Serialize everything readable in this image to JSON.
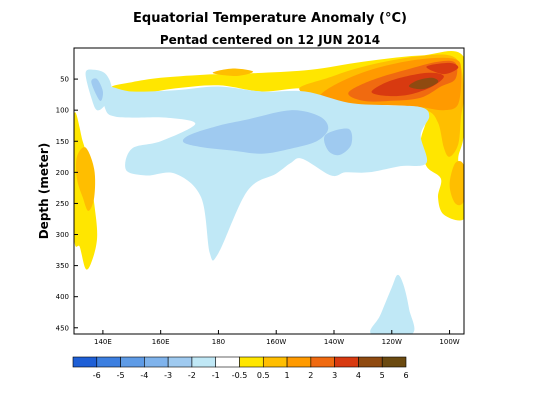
{
  "chart_data": {
    "type": "heatmap",
    "title": "Equatorial Temperature Anomaly (°C)",
    "subtitle": "Pentad centered on 12 JUN 2014",
    "ylabel": "Depth (meter)",
    "xlabel": "",
    "x_domain": [
      130,
      265
    ],
    "ylim": [
      0,
      460
    ],
    "y_inverted": true,
    "x_ticks": [
      {
        "value": 140,
        "label": "140E"
      },
      {
        "value": 160,
        "label": "160E"
      },
      {
        "value": 180,
        "label": "180"
      },
      {
        "value": 200,
        "label": "160W"
      },
      {
        "value": 220,
        "label": "140W"
      },
      {
        "value": 240,
        "label": "120W"
      },
      {
        "value": 260,
        "label": "100W"
      }
    ],
    "y_ticks": [
      {
        "value": 50,
        "label": "50"
      },
      {
        "value": 100,
        "label": "100"
      },
      {
        "value": 150,
        "label": "150"
      },
      {
        "value": 200,
        "label": "200"
      },
      {
        "value": 250,
        "label": "250"
      },
      {
        "value": 300,
        "label": "300"
      },
      {
        "value": 350,
        "label": "350"
      },
      {
        "value": 400,
        "label": "400"
      },
      {
        "value": 450,
        "label": "450"
      }
    ],
    "colorbar": {
      "labels": [
        "-6",
        "-5",
        "-4",
        "-3",
        "-2",
        "-1",
        "-0.5",
        "0.5",
        "1",
        "2",
        "3",
        "4",
        "5",
        "6"
      ],
      "colors": [
        "#1e5fd6",
        "#3c7fe0",
        "#5e9be6",
        "#7fb3ec",
        "#9fcaf0",
        "#c0e8f6",
        "#ffffff",
        "#ffe600",
        "#ffbe00",
        "#ff9a00",
        "#f06a10",
        "#d83a10",
        "#8f4a10",
        "#6b4a10"
      ]
    },
    "regions": [
      {
        "name": "warm-upper-east",
        "level": 0.5,
        "color": "#ffe600",
        "points": [
          [
            143,
            63
          ],
          [
            150,
            55
          ],
          [
            160,
            48
          ],
          [
            175,
            43
          ],
          [
            195,
            40
          ],
          [
            212,
            35
          ],
          [
            230,
            22
          ],
          [
            250,
            12
          ],
          [
            265,
            15
          ],
          [
            265,
            135
          ],
          [
            263,
            180
          ],
          [
            265,
            230
          ],
          [
            265,
            275
          ],
          [
            258,
            268
          ],
          [
            256,
            240
          ],
          [
            257,
            210
          ],
          [
            252,
            190
          ],
          [
            250,
            150
          ],
          [
            252,
            100
          ],
          [
            240,
            88
          ],
          [
            222,
            82
          ],
          [
            210,
            65
          ],
          [
            195,
            70
          ],
          [
            180,
            60
          ],
          [
            165,
            65
          ],
          [
            150,
            75
          ]
        ]
      },
      {
        "name": "warm-west-column",
        "level": 0.5,
        "color": "#ffe600",
        "points": [
          [
            130,
            110
          ],
          [
            133,
            150
          ],
          [
            135,
            185
          ],
          [
            137,
            250
          ],
          [
            138,
            305
          ],
          [
            136,
            345
          ],
          [
            134,
            355
          ],
          [
            132,
            320
          ],
          [
            130,
            300
          ]
        ]
      },
      {
        "name": "warm-west-core",
        "level": 1,
        "color": "#ffbe00",
        "points": [
          [
            131,
            175
          ],
          [
            134,
            160
          ],
          [
            137,
            195
          ],
          [
            137,
            240
          ],
          [
            135,
            262
          ],
          [
            133,
            240
          ],
          [
            131,
            210
          ]
        ]
      },
      {
        "name": "warm-east-upper",
        "level": 1,
        "color": "#ffbe00",
        "points": [
          [
            208,
            65
          ],
          [
            218,
            48
          ],
          [
            230,
            30
          ],
          [
            248,
            14
          ],
          [
            262,
            16
          ],
          [
            265,
            70
          ],
          [
            264,
            110
          ],
          [
            263,
            155
          ],
          [
            260,
            175
          ],
          [
            258,
            160
          ],
          [
            256,
            120
          ],
          [
            252,
            100
          ],
          [
            240,
            90
          ],
          [
            228,
            90
          ],
          [
            215,
            82
          ]
        ]
      },
      {
        "name": "warm-east-lower",
        "level": 1,
        "color": "#ffbe00",
        "points": [
          [
            262,
            185
          ],
          [
            265,
            190
          ],
          [
            265,
            245
          ],
          [
            262,
            250
          ],
          [
            260,
            220
          ]
        ]
      },
      {
        "name": "warm-blob-west",
        "level": 1,
        "color": "#ffbe00",
        "points": [
          [
            178,
            40
          ],
          [
            185,
            33
          ],
          [
            192,
            38
          ],
          [
            186,
            45
          ]
        ]
      },
      {
        "name": "warm-east-2c",
        "level": 2,
        "color": "#ff9a00",
        "points": [
          [
            215,
            78
          ],
          [
            222,
            55
          ],
          [
            235,
            32
          ],
          [
            250,
            18
          ],
          [
            262,
            18
          ],
          [
            264,
            40
          ],
          [
            263,
            90
          ],
          [
            258,
            100
          ],
          [
            250,
            95
          ],
          [
            240,
            92
          ],
          [
            228,
            92
          ],
          [
            220,
            90
          ]
        ]
      },
      {
        "name": "warm-east-3c",
        "level": 3,
        "color": "#f06a10",
        "points": [
          [
            225,
            72
          ],
          [
            233,
            52
          ],
          [
            245,
            35
          ],
          [
            256,
            22
          ],
          [
            262,
            24
          ],
          [
            262,
            50
          ],
          [
            257,
            62
          ],
          [
            250,
            80
          ],
          [
            240,
            85
          ],
          [
            230,
            85
          ]
        ]
      },
      {
        "name": "warm-east-4c",
        "level": 4,
        "color": "#d83a10",
        "points": [
          [
            233,
            70
          ],
          [
            240,
            52
          ],
          [
            252,
            40
          ],
          [
            258,
            45
          ],
          [
            254,
            62
          ],
          [
            246,
            75
          ],
          [
            238,
            77
          ]
        ]
      },
      {
        "name": "warm-east-4c-b",
        "level": 4,
        "color": "#d83a10",
        "points": [
          [
            252,
            30
          ],
          [
            260,
            24
          ],
          [
            263,
            32
          ],
          [
            258,
            42
          ]
        ]
      },
      {
        "name": "warm-east-5c",
        "level": 5,
        "color": "#8f4a10",
        "points": [
          [
            246,
            62
          ],
          [
            249,
            52
          ],
          [
            254,
            48
          ],
          [
            256,
            55
          ],
          [
            251,
            66
          ]
        ]
      },
      {
        "name": "cool-west-upper",
        "level": -0.5,
        "color": "#c0e8f6",
        "points": [
          [
            134,
            40
          ],
          [
            137,
            35
          ],
          [
            141,
            42
          ],
          [
            143,
            65
          ],
          [
            141,
            90
          ],
          [
            138,
            100
          ],
          [
            136,
            80
          ]
        ]
      },
      {
        "name": "cool-upper-band",
        "level": -0.5,
        "color": "#c0e8f6",
        "points": [
          [
            140,
            62
          ],
          [
            150,
            70
          ],
          [
            165,
            68
          ],
          [
            180,
            62
          ],
          [
            195,
            70
          ],
          [
            210,
            70
          ],
          [
            225,
            88
          ],
          [
            238,
            92
          ],
          [
            250,
            95
          ],
          [
            253,
            110
          ],
          [
            250,
            140
          ],
          [
            252,
            185
          ],
          [
            243,
            190
          ],
          [
            232,
            200
          ],
          [
            224,
            200
          ],
          [
            219,
            205
          ],
          [
            209,
            178
          ],
          [
            205,
            185
          ],
          [
            200,
            202
          ],
          [
            190,
            230
          ],
          [
            180,
            330
          ],
          [
            177,
            330
          ],
          [
            174,
            240
          ],
          [
            165,
            202
          ],
          [
            155,
            205
          ],
          [
            148,
            196
          ],
          [
            150,
            162
          ],
          [
            160,
            150
          ],
          [
            172,
            122
          ],
          [
            162,
            112
          ],
          [
            150,
            112
          ],
          [
            144,
            110
          ],
          [
            141,
            100
          ]
        ]
      },
      {
        "name": "cool-lower-plume",
        "level": -0.5,
        "color": "#c0e8f6",
        "points": [
          [
            233,
            460
          ],
          [
            236,
            430
          ],
          [
            240,
            385
          ],
          [
            242,
            365
          ],
          [
            244,
            380
          ],
          [
            246,
            420
          ],
          [
            247,
            460
          ]
        ]
      },
      {
        "name": "cool-1c-center",
        "level": -1,
        "color": "#9fcaf0",
        "points": [
          [
            170,
            140
          ],
          [
            180,
            125
          ],
          [
            190,
            115
          ],
          [
            205,
            100
          ],
          [
            215,
            110
          ],
          [
            218,
            130
          ],
          [
            214,
            150
          ],
          [
            205,
            162
          ],
          [
            195,
            170
          ],
          [
            185,
            165
          ],
          [
            175,
            160
          ],
          [
            168,
            152
          ]
        ]
      },
      {
        "name": "cool-1c-east",
        "level": -1,
        "color": "#9fcaf0",
        "points": [
          [
            217,
            140
          ],
          [
            225,
            130
          ],
          [
            226,
            155
          ],
          [
            222,
            172
          ],
          [
            218,
            165
          ]
        ]
      },
      {
        "name": "cool-1c-west",
        "level": -1,
        "color": "#9fcaf0",
        "points": [
          [
            136,
            55
          ],
          [
            138,
            50
          ],
          [
            140,
            70
          ],
          [
            139,
            85
          ]
        ]
      }
    ]
  }
}
